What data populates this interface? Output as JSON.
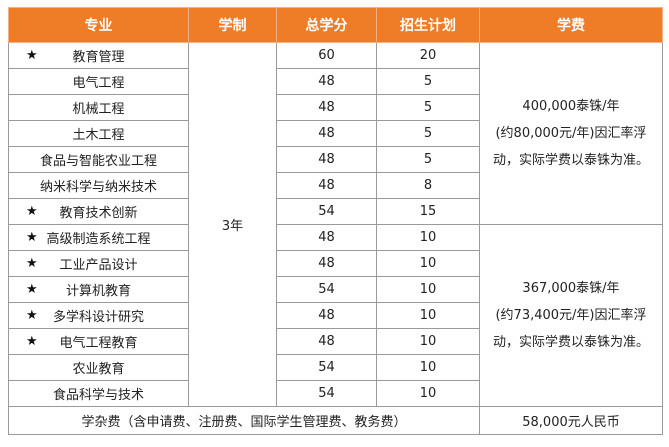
{
  "headers": [
    "专业",
    "学制",
    "总学分",
    "招生计划",
    "学费"
  ],
  "duration": "3年",
  "star_symbol": "★",
  "rows": [
    {
      "major": "教育管理",
      "starred": true,
      "credits": "60",
      "plan": "20"
    },
    {
      "major": "电气工程",
      "starred": false,
      "credits": "48",
      "plan": "5"
    },
    {
      "major": "机械工程",
      "starred": false,
      "credits": "48",
      "plan": "5"
    },
    {
      "major": "土木工程",
      "starred": false,
      "credits": "48",
      "plan": "5"
    },
    {
      "major": "食品与智能农业工程",
      "starred": false,
      "credits": "48",
      "plan": "5"
    },
    {
      "major": "纳米科学与纳米技术",
      "starred": false,
      "credits": "48",
      "plan": "8"
    },
    {
      "major": "教育技术创新",
      "starred": true,
      "credits": "54",
      "plan": "15"
    },
    {
      "major": "高级制造系统工程",
      "starred": true,
      "credits": "48",
      "plan": "10"
    },
    {
      "major": "工业产品设计",
      "starred": true,
      "credits": "48",
      "plan": "10"
    },
    {
      "major": "计算机教育",
      "starred": true,
      "credits": "54",
      "plan": "10"
    },
    {
      "major": "多学科设计研究",
      "starred": true,
      "credits": "48",
      "plan": "10"
    },
    {
      "major": "电气工程教育",
      "starred": true,
      "credits": "48",
      "plan": "10"
    },
    {
      "major": "农业教育",
      "starred": false,
      "credits": "54",
      "plan": "10"
    },
    {
      "major": "食品科学与技术",
      "starred": false,
      "credits": "54",
      "plan": "10"
    }
  ],
  "tuition": [
    {
      "line1": "400,000泰铢/年",
      "line2": "(约80,000元/年)因汇率浮",
      "line3": "动，实际学费以泰铢为准。"
    },
    {
      "line1": "367,000泰铢/年",
      "line2": "(约73,400元/年)因汇率浮",
      "line3": "动，实际学费以泰铢为准。"
    }
  ],
  "misc": {
    "label": "学杂费（含申请费、注册费、国际学生管理费、教务费）",
    "value": "58,000元人民币"
  },
  "colors": {
    "header_bg": "#ef7d28",
    "header_text": "#ffffff",
    "border": "#9a9a9a"
  }
}
